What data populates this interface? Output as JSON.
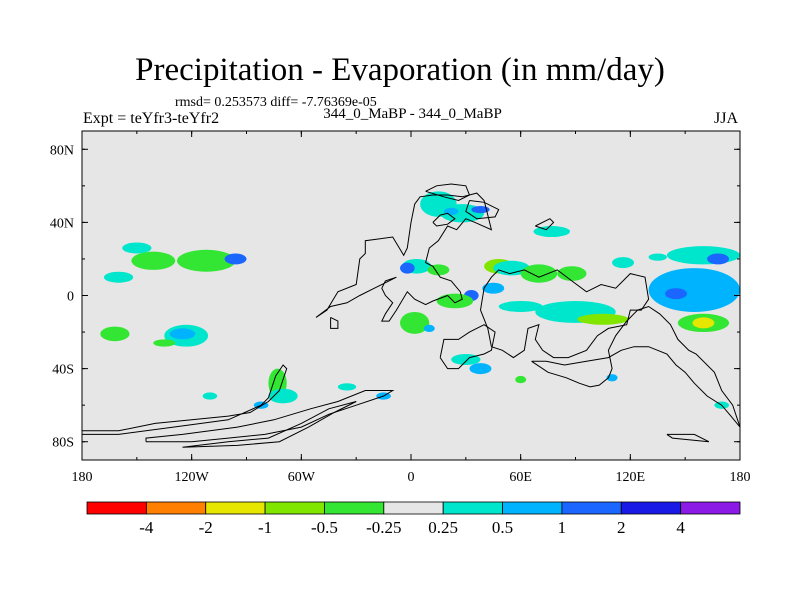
{
  "chart_data": {
    "type": "heatmap",
    "title": "Precipitation - Evaporation (in mm/day)",
    "stats": "rmsd= 0.253573 diff= -7.76369e-05",
    "experiment": "Expt = teYfr3-teYfr2",
    "period": "344_0_MaBP - 344_0_MaBP",
    "season": "JJA",
    "x_range": [
      -180,
      180
    ],
    "y_range": [
      -90,
      90
    ],
    "x_ticks": [
      {
        "value": -180,
        "label": "180"
      },
      {
        "value": -120,
        "label": "120W"
      },
      {
        "value": -60,
        "label": "60W"
      },
      {
        "value": 0,
        "label": "0"
      },
      {
        "value": 60,
        "label": "60E"
      },
      {
        "value": 120,
        "label": "120E"
      },
      {
        "value": 180,
        "label": "180"
      }
    ],
    "y_ticks": [
      {
        "value": 80,
        "label": "80N"
      },
      {
        "value": 40,
        "label": "40N"
      },
      {
        "value": 0,
        "label": "0"
      },
      {
        "value": -40,
        "label": "40S"
      },
      {
        "value": -80,
        "label": "80S"
      }
    ],
    "background_color": "#e6e6e6",
    "colorbar": {
      "bins": [
        {
          "color": "#ff0000"
        },
        {
          "color": "#ff8000"
        },
        {
          "color": "#e6e600"
        },
        {
          "color": "#80e600"
        },
        {
          "color": "#33e633"
        },
        {
          "color": "#e6e6e6"
        },
        {
          "color": "#00e6cc"
        },
        {
          "color": "#00b3ff"
        },
        {
          "color": "#1a66ff"
        },
        {
          "color": "#1a1ae6"
        },
        {
          "color": "#8c1ae6"
        }
      ],
      "labels": [
        "-4",
        "-2",
        "-1",
        "-0.5",
        "-0.25",
        "0.25",
        "0.5",
        "1",
        "2",
        "4"
      ]
    },
    "anomalies": [
      {
        "lon": -141,
        "lat": 19,
        "rx": 12,
        "ry": 5,
        "value": -0.4
      },
      {
        "lon": -112,
        "lat": 19,
        "rx": 16,
        "ry": 6,
        "value": -0.4
      },
      {
        "lon": -96,
        "lat": 20,
        "rx": 6,
        "ry": 3,
        "value": 1.5
      },
      {
        "lon": -150,
        "lat": 26,
        "rx": 8,
        "ry": 3,
        "value": 0.3
      },
      {
        "lon": -160,
        "lat": 10,
        "rx": 8,
        "ry": 3,
        "value": 0.3
      },
      {
        "lon": -162,
        "lat": -21,
        "rx": 8,
        "ry": 4,
        "value": -0.4
      },
      {
        "lon": -123,
        "lat": -22,
        "rx": 12,
        "ry": 6,
        "value": 0.3
      },
      {
        "lon": -125,
        "lat": -21,
        "rx": 7,
        "ry": 3,
        "value": 0.7
      },
      {
        "lon": -135,
        "lat": -26,
        "rx": 6,
        "ry": 2,
        "value": -0.4
      },
      {
        "lon": -73,
        "lat": -48,
        "rx": 5,
        "ry": 8,
        "value": -0.4
      },
      {
        "lon": -70,
        "lat": -55,
        "rx": 8,
        "ry": 4,
        "value": 0.3
      },
      {
        "lon": -82,
        "lat": -60,
        "rx": 4,
        "ry": 2,
        "value": 0.7
      },
      {
        "lon": -110,
        "lat": -55,
        "rx": 4,
        "ry": 2,
        "value": 0.3
      },
      {
        "lon": -35,
        "lat": -50,
        "rx": 5,
        "ry": 2,
        "value": 0.4
      },
      {
        "lon": -15,
        "lat": -55,
        "rx": 4,
        "ry": 2,
        "value": 0.7
      },
      {
        "lon": 15,
        "lat": 50,
        "rx": 10,
        "ry": 7,
        "value": 0.3
      },
      {
        "lon": 28,
        "lat": 45,
        "rx": 12,
        "ry": 5,
        "value": 0.4
      },
      {
        "lon": 22,
        "lat": 46,
        "rx": 4,
        "ry": 2,
        "value": 0.7
      },
      {
        "lon": 38,
        "lat": 47,
        "rx": 5,
        "ry": 2,
        "value": 1.5
      },
      {
        "lon": 77,
        "lat": 35,
        "rx": 10,
        "ry": 3,
        "value": 0.3
      },
      {
        "lon": 3,
        "lat": 16,
        "rx": 8,
        "ry": 4,
        "value": 0.3
      },
      {
        "lon": -2,
        "lat": 15,
        "rx": 4,
        "ry": 3,
        "value": 1.5
      },
      {
        "lon": 15,
        "lat": 14,
        "rx": 6,
        "ry": 3,
        "value": -0.4
      },
      {
        "lon": 48,
        "lat": 16,
        "rx": 8,
        "ry": 4,
        "value": -0.6
      },
      {
        "lon": 55,
        "lat": 15,
        "rx": 10,
        "ry": 4,
        "value": 0.3
      },
      {
        "lon": 70,
        "lat": 12,
        "rx": 10,
        "ry": 5,
        "value": -0.4
      },
      {
        "lon": 88,
        "lat": 12,
        "rx": 8,
        "ry": 4,
        "value": -0.4
      },
      {
        "lon": 45,
        "lat": 4,
        "rx": 6,
        "ry": 3,
        "value": 0.7
      },
      {
        "lon": 33,
        "lat": 0,
        "rx": 4,
        "ry": 3,
        "value": 1.5
      },
      {
        "lon": 24,
        "lat": -3,
        "rx": 10,
        "ry": 4,
        "value": -0.4
      },
      {
        "lon": 2,
        "lat": -15,
        "rx": 8,
        "ry": 6,
        "value": -0.4
      },
      {
        "lon": 10,
        "lat": -18,
        "rx": 3,
        "ry": 2,
        "value": 0.7
      },
      {
        "lon": 60,
        "lat": -6,
        "rx": 12,
        "ry": 3,
        "value": 0.3
      },
      {
        "lon": 90,
        "lat": -9,
        "rx": 22,
        "ry": 6,
        "value": 0.3
      },
      {
        "lon": 105,
        "lat": -13,
        "rx": 14,
        "ry": 3,
        "value": -0.6
      },
      {
        "lon": 155,
        "lat": 3,
        "rx": 25,
        "ry": 12,
        "value": 0.8
      },
      {
        "lon": 145,
        "lat": 1,
        "rx": 6,
        "ry": 3,
        "value": 1.5
      },
      {
        "lon": 160,
        "lat": 22,
        "rx": 20,
        "ry": 5,
        "value": 0.3
      },
      {
        "lon": 168,
        "lat": 20,
        "rx": 6,
        "ry": 3,
        "value": 1.5
      },
      {
        "lon": 116,
        "lat": 18,
        "rx": 6,
        "ry": 3,
        "value": 0.3
      },
      {
        "lon": 135,
        "lat": 21,
        "rx": 5,
        "ry": 2,
        "value": 0.3
      },
      {
        "lon": 160,
        "lat": -15,
        "rx": 14,
        "ry": 5,
        "value": -0.4
      },
      {
        "lon": 160,
        "lat": -15,
        "rx": 6,
        "ry": 3,
        "value": -1.5
      },
      {
        "lon": 30,
        "lat": -35,
        "rx": 8,
        "ry": 3,
        "value": 0.3
      },
      {
        "lon": 38,
        "lat": -40,
        "rx": 6,
        "ry": 3,
        "value": 0.7
      },
      {
        "lon": 60,
        "lat": -46,
        "rx": 3,
        "ry": 2,
        "value": -0.4
      },
      {
        "lon": 110,
        "lat": -45,
        "rx": 3,
        "ry": 2,
        "value": 0.7
      },
      {
        "lon": 170,
        "lat": -60,
        "rx": 4,
        "ry": 2,
        "value": 0.3
      }
    ],
    "coastlines": [
      [
        [
          -180,
          -74
        ],
        [
          -160,
          -74
        ],
        [
          -140,
          -70
        ],
        [
          -120,
          -68
        ],
        [
          -100,
          -66
        ],
        [
          -88,
          -64
        ],
        [
          -78,
          -58
        ],
        [
          -72,
          -52
        ],
        [
          -68,
          -40
        ],
        [
          -70,
          -38
        ],
        [
          -74,
          -44
        ],
        [
          -78,
          -56
        ],
        [
          -82,
          -60
        ],
        [
          -100,
          -68
        ],
        [
          -130,
          -72
        ],
        [
          -160,
          -76
        ],
        [
          -180,
          -76
        ]
      ],
      [
        [
          -145,
          -80
        ],
        [
          -120,
          -80
        ],
        [
          -100,
          -78
        ],
        [
          -80,
          -76
        ],
        [
          -60,
          -72
        ],
        [
          -45,
          -65
        ],
        [
          -30,
          -60
        ],
        [
          -15,
          -55
        ],
        [
          -10,
          -52
        ],
        [
          -25,
          -52
        ],
        [
          -40,
          -58
        ],
        [
          -55,
          -62
        ],
        [
          -75,
          -68
        ],
        [
          -95,
          -72
        ],
        [
          -125,
          -76
        ],
        [
          -145,
          -78
        ],
        [
          -145,
          -80
        ]
      ],
      [
        [
          -125,
          -83
        ],
        [
          -95,
          -82
        ],
        [
          -72,
          -80
        ],
        [
          -56,
          -72
        ],
        [
          -42,
          -64
        ],
        [
          -30,
          -58
        ],
        [
          -45,
          -62
        ],
        [
          -60,
          -70
        ],
        [
          -78,
          -78
        ],
        [
          -100,
          -80
        ],
        [
          -125,
          -83
        ]
      ],
      [
        [
          -52,
          -12
        ],
        [
          -46,
          -8
        ],
        [
          -40,
          2
        ],
        [
          -30,
          6
        ],
        [
          -28,
          20
        ],
        [
          -25,
          23
        ],
        [
          -25,
          30
        ],
        [
          -10,
          32
        ],
        [
          -4,
          22
        ],
        [
          -2,
          26
        ],
        [
          0,
          40
        ],
        [
          2,
          50
        ],
        [
          5,
          54
        ],
        [
          12,
          55
        ],
        [
          20,
          55
        ],
        [
          28,
          54
        ],
        [
          36,
          56
        ],
        [
          40,
          52
        ],
        [
          42,
          44
        ],
        [
          44,
          36
        ],
        [
          35,
          40
        ],
        [
          30,
          42
        ],
        [
          25,
          36
        ],
        [
          20,
          38
        ],
        [
          15,
          30
        ],
        [
          10,
          26
        ],
        [
          8,
          18
        ],
        [
          12,
          16
        ],
        [
          16,
          10
        ],
        [
          22,
          8
        ],
        [
          27,
          2
        ],
        [
          28,
          -2
        ],
        [
          24,
          -4
        ],
        [
          20,
          0
        ],
        [
          12,
          -3
        ],
        [
          8,
          -5
        ],
        [
          2,
          -2
        ],
        [
          -2,
          2
        ],
        [
          -8,
          -8
        ],
        [
          -12,
          -14
        ],
        [
          -16,
          -14
        ],
        [
          -14,
          -10
        ],
        [
          -10,
          -4
        ],
        [
          -14,
          0
        ],
        [
          -16,
          4
        ],
        [
          -14,
          8
        ],
        [
          -8,
          10
        ],
        [
          -20,
          4
        ],
        [
          -28,
          0
        ],
        [
          -35,
          -4
        ],
        [
          -44,
          -6
        ],
        [
          -52,
          -12
        ]
      ],
      [
        [
          -44,
          -12
        ],
        [
          -40,
          -14
        ],
        [
          -40,
          -18
        ],
        [
          -44,
          -18
        ],
        [
          -44,
          -12
        ]
      ],
      [
        [
          16,
          -34
        ],
        [
          20,
          -40
        ],
        [
          26,
          -40
        ],
        [
          32,
          -34
        ],
        [
          40,
          -32
        ],
        [
          44,
          -30
        ],
        [
          46,
          -20
        ],
        [
          40,
          -16
        ],
        [
          32,
          -20
        ],
        [
          26,
          -24
        ],
        [
          18,
          -24
        ],
        [
          16,
          -34
        ]
      ],
      [
        [
          44,
          -28
        ],
        [
          50,
          -30
        ],
        [
          56,
          -34
        ],
        [
          62,
          -30
        ],
        [
          64,
          -18
        ],
        [
          70,
          -16
        ],
        [
          68,
          -24
        ],
        [
          72,
          -30
        ],
        [
          78,
          -34
        ],
        [
          86,
          -34
        ],
        [
          96,
          -30
        ],
        [
          102,
          -22
        ],
        [
          108,
          -18
        ],
        [
          118,
          -16
        ],
        [
          120,
          -8
        ],
        [
          126,
          -8
        ],
        [
          130,
          -2
        ],
        [
          128,
          10
        ],
        [
          120,
          12
        ],
        [
          112,
          4
        ],
        [
          104,
          6
        ],
        [
          96,
          2
        ],
        [
          88,
          8
        ],
        [
          80,
          14
        ],
        [
          70,
          10
        ],
        [
          62,
          14
        ],
        [
          54,
          12
        ],
        [
          48,
          14
        ],
        [
          44,
          10
        ],
        [
          40,
          4
        ],
        [
          38,
          -8
        ],
        [
          42,
          -18
        ],
        [
          44,
          -28
        ]
      ],
      [
        [
          66,
          -36
        ],
        [
          75,
          -42
        ],
        [
          85,
          -45
        ],
        [
          92,
          -48
        ],
        [
          98,
          -50
        ],
        [
          103,
          -49
        ],
        [
          108,
          -45
        ],
        [
          110,
          -40
        ],
        [
          108,
          -30
        ],
        [
          112,
          -22
        ],
        [
          118,
          -14
        ],
        [
          124,
          -8
        ],
        [
          130,
          -6
        ],
        [
          136,
          -10
        ],
        [
          142,
          -16
        ],
        [
          146,
          -24
        ],
        [
          152,
          -30
        ],
        [
          156,
          -32
        ],
        [
          166,
          -42
        ],
        [
          170,
          -52
        ],
        [
          176,
          -60
        ],
        [
          180,
          -72
        ],
        [
          175,
          -66
        ],
        [
          170,
          -60
        ],
        [
          162,
          -55
        ],
        [
          155,
          -48
        ],
        [
          150,
          -42
        ],
        [
          145,
          -38
        ],
        [
          140,
          -32
        ],
        [
          130,
          -28
        ],
        [
          122,
          -28
        ],
        [
          115,
          -30
        ],
        [
          108,
          -34
        ],
        [
          96,
          -36
        ],
        [
          84,
          -38
        ],
        [
          74,
          -36
        ],
        [
          66,
          -36
        ]
      ],
      [
        [
          140,
          -76
        ],
        [
          155,
          -76
        ],
        [
          163,
          -80
        ],
        [
          143,
          -78
        ],
        [
          140,
          -76
        ]
      ],
      [
        [
          8,
          57
        ],
        [
          14,
          60
        ],
        [
          22,
          61
        ],
        [
          30,
          60
        ],
        [
          32,
          55
        ],
        [
          26,
          52
        ],
        [
          18,
          54
        ],
        [
          8,
          57
        ]
      ],
      [
        [
          12,
          40
        ],
        [
          16,
          44
        ],
        [
          20,
          45
        ],
        [
          24,
          42
        ],
        [
          20,
          39
        ],
        [
          14,
          38
        ],
        [
          12,
          40
        ]
      ],
      [
        [
          32,
          52
        ],
        [
          40,
          51
        ],
        [
          48,
          47
        ],
        [
          46,
          43
        ],
        [
          36,
          42
        ],
        [
          30,
          46
        ],
        [
          32,
          52
        ]
      ],
      [
        [
          68,
          38
        ],
        [
          76,
          42
        ],
        [
          78,
          40
        ],
        [
          74,
          36
        ],
        [
          68,
          38
        ]
      ]
    ]
  }
}
